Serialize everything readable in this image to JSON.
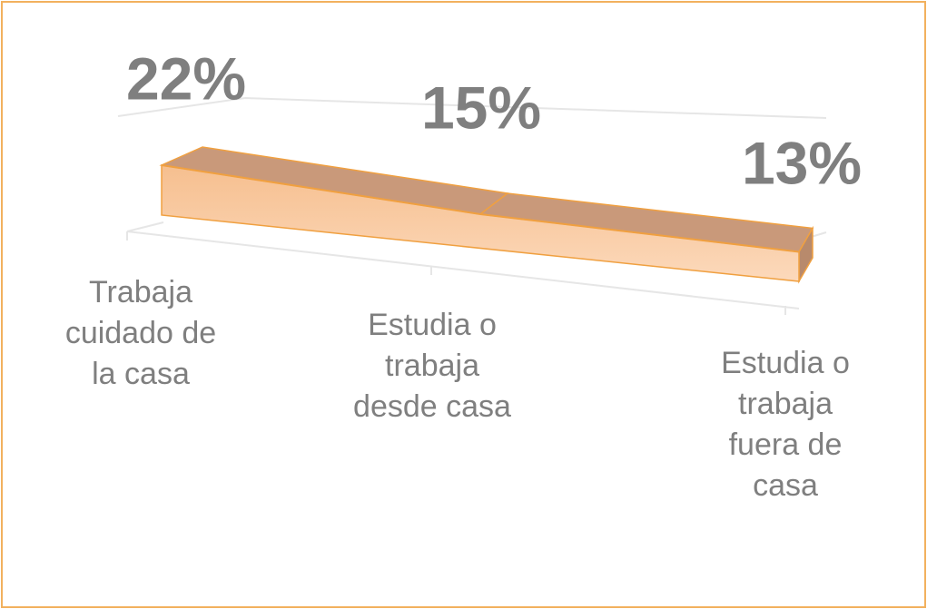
{
  "chart_data": {
    "type": "line3d",
    "categories": [
      "Trabaja cuidado de la casa",
      "Estudia o trabaja desde casa",
      "Estudia o trabaja fuera de casa"
    ],
    "values": [
      22,
      15,
      13
    ],
    "value_labels": [
      "22%",
      "15%",
      "13%"
    ],
    "color": "#f8c79b"
  }
}
